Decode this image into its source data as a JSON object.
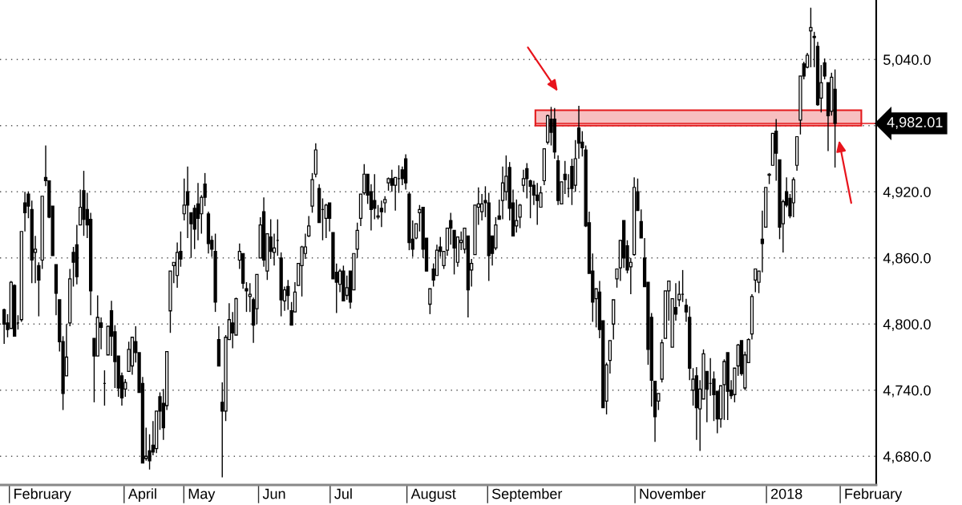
{
  "chart_data": {
    "type": "candlestick",
    "color": "#000000",
    "categories": [
      null,
      null,
      null,
      null,
      null,
      null,
      null,
      null,
      null,
      null,
      null,
      "February",
      null,
      null,
      null,
      null,
      null,
      null,
      null,
      null,
      null,
      null,
      null,
      null,
      null,
      null,
      null,
      null,
      null,
      null,
      null,
      null,
      null,
      null,
      null,
      null,
      null,
      null,
      null,
      null,
      "April",
      null,
      null,
      null,
      null,
      null,
      null,
      null,
      null,
      null,
      null,
      null,
      null,
      null,
      null,
      null,
      null,
      "May",
      null,
      null,
      null,
      null,
      null,
      null,
      null,
      null,
      null,
      null,
      null,
      null,
      null,
      null,
      null,
      null,
      null,
      null,
      null,
      null,
      "Jun",
      null,
      null,
      null,
      null,
      null,
      null,
      null,
      null,
      null,
      null,
      null,
      null,
      null,
      null,
      null,
      null,
      null,
      null,
      null,
      "Jul",
      null,
      null,
      null,
      null,
      null,
      null,
      null,
      null,
      null,
      null,
      null,
      null,
      null,
      null,
      null,
      null,
      null,
      null,
      null,
      null,
      null,
      null,
      null,
      null,
      null,
      "August",
      null,
      null,
      null,
      null,
      null,
      null,
      null,
      null,
      null,
      null,
      null,
      null,
      null,
      null,
      null,
      null,
      null,
      null,
      null,
      null,
      null,
      null,
      null,
      null,
      null,
      null,
      "September",
      null,
      null,
      null,
      null,
      null,
      null,
      null,
      null,
      null,
      null,
      null,
      null,
      null,
      null,
      null,
      null,
      null,
      null,
      null,
      null,
      null,
      null,
      null,
      null,
      null,
      null,
      null,
      null,
      null,
      null,
      null,
      null,
      null,
      null,
      null,
      null,
      null,
      null,
      null,
      null,
      null,
      "November",
      null,
      null,
      null,
      null,
      null,
      null,
      null,
      null,
      null,
      null,
      null,
      null,
      null,
      null,
      null,
      null,
      null,
      null,
      null,
      null,
      null,
      null,
      null,
      null,
      null,
      null,
      null,
      null,
      null,
      null,
      null,
      null,
      "2018",
      null,
      null,
      null,
      null,
      null,
      null,
      null,
      null,
      null,
      null,
      null,
      null,
      null,
      null,
      null,
      null,
      null,
      null,
      null,
      null,
      null,
      null,
      null,
      null,
      "February"
    ],
    "ohlc": [
      [
        4813,
        4814,
        4782,
        4800
      ],
      [
        4801,
        4809,
        4788,
        4795
      ],
      [
        4796,
        4839,
        4796,
        4838
      ],
      [
        4835,
        4836,
        4789,
        4789
      ],
      [
        4801,
        4808,
        4795,
        4801
      ],
      [
        4804,
        4884,
        4802,
        4884
      ],
      [
        4910,
        4920,
        4884,
        4901
      ],
      [
        4918,
        4920,
        4896,
        4907
      ],
      [
        4904,
        4912,
        4837,
        4858
      ],
      [
        4865,
        4880,
        4837,
        4868
      ],
      [
        4853,
        4856,
        4807,
        4840
      ],
      [
        4858,
        4916,
        4850,
        4916
      ],
      [
        4933,
        4962,
        4925,
        4930
      ],
      [
        4930,
        4930,
        4896,
        4897
      ],
      [
        4907,
        4907,
        4862,
        4862
      ],
      [
        4854,
        4854,
        4808,
        4828
      ],
      [
        4822,
        4822,
        4775,
        4784
      ],
      [
        4784,
        4789,
        4722,
        4737
      ],
      [
        4753,
        4800,
        4753,
        4770
      ],
      [
        4801,
        4850,
        4798,
        4841
      ],
      [
        4865,
        4870,
        4834,
        4856
      ],
      [
        4872,
        4890,
        4836,
        4843
      ],
      [
        4890,
        4922,
        4890,
        4906
      ],
      [
        4921,
        4939,
        4880,
        4895
      ],
      [
        4904,
        4919,
        4878,
        4890
      ],
      [
        4895,
        4901,
        4808,
        4830
      ],
      [
        4787,
        4787,
        4729,
        4771
      ],
      [
        4771,
        4826,
        4771,
        4806
      ],
      [
        4801,
        4806,
        4777,
        4797
      ],
      [
        4746,
        4758,
        4726,
        4746
      ],
      [
        4772,
        4798,
        4772,
        4798
      ],
      [
        4812,
        4821,
        4771,
        4789
      ],
      [
        4793,
        4799,
        4742,
        4766
      ],
      [
        4771,
        4771,
        4734,
        4742
      ],
      [
        4753,
        4756,
        4726,
        4733
      ],
      [
        4741,
        4750,
        4734,
        4747
      ],
      [
        4757,
        4784,
        4757,
        4777
      ],
      [
        4762,
        4788,
        4754,
        4788
      ],
      [
        4784,
        4798,
        4765,
        4774
      ],
      [
        4774,
        4774,
        4738,
        4738
      ],
      [
        4746,
        4752,
        4674,
        4674
      ],
      [
        4678,
        4706,
        4676,
        4680
      ],
      [
        4685,
        4700,
        4668,
        4676
      ],
      [
        4690,
        4712,
        4681,
        4684
      ],
      [
        4687,
        4721,
        4683,
        4721
      ],
      [
        4734,
        4738,
        4704,
        4721
      ],
      [
        4728,
        4741,
        4695,
        4706
      ],
      [
        4726,
        4775,
        4722,
        4775
      ],
      [
        4812,
        4848,
        4792,
        4848
      ],
      [
        4853,
        4856,
        4837,
        4856
      ],
      [
        4844,
        4874,
        4833,
        4865
      ],
      [
        4866,
        4884,
        4852,
        4859
      ],
      [
        4900,
        4932,
        4894,
        4908
      ],
      [
        4920,
        4943,
        4878,
        4908
      ],
      [
        4901,
        4901,
        4860,
        4891
      ],
      [
        4905,
        4908,
        4868,
        4886
      ],
      [
        4909,
        4928,
        4876,
        4896
      ],
      [
        4900,
        4917,
        4882,
        4915
      ],
      [
        4927,
        4937,
        4907,
        4915
      ],
      [
        4900,
        4902,
        4864,
        4873
      ],
      [
        4876,
        4880,
        4861,
        4868
      ],
      [
        4866,
        4882,
        4811,
        4820
      ],
      [
        4786,
        4798,
        4762,
        4762
      ],
      [
        4729,
        4747,
        4661,
        4721
      ],
      [
        4721,
        4790,
        4712,
        4788
      ],
      [
        4786,
        4819,
        4786,
        4804
      ],
      [
        4801,
        4811,
        4778,
        4792
      ],
      [
        4790,
        4824,
        4790,
        4823
      ],
      [
        4858,
        4873,
        4850,
        4866
      ],
      [
        4864,
        4864,
        4832,
        4837
      ],
      [
        4832,
        4838,
        4811,
        4830
      ],
      [
        4825,
        4837,
        4811,
        4827
      ],
      [
        4822,
        4824,
        4783,
        4799
      ],
      [
        4814,
        4845,
        4800,
        4845
      ],
      [
        4860,
        4897,
        4860,
        4890
      ],
      [
        4902,
        4915,
        4852,
        4858
      ],
      [
        4848,
        4882,
        4840,
        4882
      ],
      [
        4879,
        4895,
        4859,
        4866
      ],
      [
        4865,
        4882,
        4853,
        4869
      ],
      [
        4876,
        4895,
        4862,
        4876
      ],
      [
        4860,
        4865,
        4807,
        4822
      ],
      [
        4821,
        4834,
        4812,
        4831
      ],
      [
        4834,
        4840,
        4813,
        4826
      ],
      [
        4812,
        4820,
        4799,
        4799
      ],
      [
        4811,
        4838,
        4811,
        4829
      ],
      [
        4835,
        4855,
        4835,
        4855
      ],
      [
        4853,
        4871,
        4825,
        4870
      ],
      [
        4864,
        4882,
        4859,
        4870
      ],
      [
        4880,
        4898,
        4879,
        4889
      ],
      [
        4907,
        4937,
        4901,
        4931
      ],
      [
        4936,
        4964,
        4933,
        4958
      ],
      [
        4923,
        4927,
        4892,
        4892
      ],
      [
        4904,
        4914,
        4876,
        4904
      ],
      [
        4896,
        4909,
        4878,
        4908
      ],
      [
        4910,
        4910,
        4884,
        4896
      ],
      [
        4883,
        4883,
        4841,
        4841
      ],
      [
        4847,
        4855,
        4810,
        4838
      ],
      [
        4836,
        4850,
        4829,
        4848
      ],
      [
        4848,
        4853,
        4821,
        4821
      ],
      [
        4826,
        4844,
        4822,
        4833
      ],
      [
        4848,
        4848,
        4814,
        4820
      ],
      [
        4831,
        4864,
        4831,
        4864
      ],
      [
        4868,
        4892,
        4860,
        4885
      ],
      [
        4896,
        4918,
        4889,
        4918
      ],
      [
        4919,
        4945,
        4917,
        4936
      ],
      [
        4936,
        4936,
        4909,
        4917
      ],
      [
        4920,
        4927,
        4885,
        4904
      ],
      [
        4912,
        4936,
        4895,
        4905
      ],
      [
        4897,
        4908,
        4895,
        4898
      ],
      [
        4905,
        4912,
        4888,
        4902
      ],
      [
        4910,
        4916,
        4901,
        4913
      ],
      [
        4928,
        4933,
        4921,
        4932
      ],
      [
        4932,
        4940,
        4920,
        4926
      ],
      [
        4926,
        4933,
        4903,
        4933
      ],
      [
        4932,
        4944,
        4919,
        4932
      ],
      [
        4940,
        4943,
        4926,
        4932
      ],
      [
        4950,
        4954,
        4922,
        4928
      ],
      [
        4918,
        4920,
        4867,
        4874
      ],
      [
        4877,
        4894,
        4861,
        4868
      ],
      [
        4878,
        4891,
        4877,
        4891
      ],
      [
        4901,
        4908,
        4884,
        4904
      ],
      [
        4906,
        4906,
        4860,
        4868
      ],
      [
        4878,
        4878,
        4848,
        4848
      ],
      [
        4818,
        4832,
        4809,
        4832
      ],
      [
        4850,
        4855,
        4834,
        4840
      ],
      [
        4844,
        4872,
        4844,
        4867
      ],
      [
        4870,
        4879,
        4861,
        4866
      ],
      [
        4853,
        4866,
        4850,
        4866
      ],
      [
        4867,
        4887,
        4862,
        4887
      ],
      [
        4894,
        4901,
        4872,
        4887
      ],
      [
        4885,
        4885,
        4845,
        4869
      ],
      [
        4856,
        4879,
        4852,
        4879
      ],
      [
        4874,
        4884,
        4867,
        4876
      ],
      [
        4868,
        4887,
        4864,
        4887
      ],
      [
        4880,
        4880,
        4806,
        4831
      ],
      [
        4849,
        4859,
        4834,
        4855
      ],
      [
        4863,
        4908,
        4863,
        4908
      ],
      [
        4906,
        4924,
        4890,
        4909
      ],
      [
        4902,
        4918,
        4894,
        4909
      ],
      [
        4912,
        4925,
        4897,
        4910
      ],
      [
        4910,
        4919,
        4839,
        4862
      ],
      [
        4880,
        4880,
        4853,
        4864
      ],
      [
        4869,
        4897,
        4867,
        4890
      ],
      [
        4898,
        4913,
        4895,
        4895
      ],
      [
        4912,
        4943,
        4895,
        4928
      ],
      [
        4920,
        4953,
        4912,
        4934
      ],
      [
        4942,
        4947,
        4894,
        4905
      ],
      [
        4910,
        4922,
        4880,
        4880
      ],
      [
        4889,
        4913,
        4883,
        4894
      ],
      [
        4897,
        4909,
        4887,
        4908
      ],
      [
        4926,
        4940,
        4920,
        4932
      ],
      [
        4941,
        4946,
        4914,
        4932
      ],
      [
        4930,
        4931,
        4896,
        4925
      ],
      [
        4926,
        4930,
        4908,
        4917
      ],
      [
        4917,
        4928,
        4890,
        4912
      ],
      [
        4906,
        4925,
        4906,
        4919
      ],
      [
        4930,
        4959,
        4926,
        4959
      ],
      [
        4965,
        4990,
        4963,
        4989
      ],
      [
        4986,
        4997,
        4962,
        4974
      ],
      [
        4986,
        4996,
        4950,
        4956
      ],
      [
        4948,
        4953,
        4908,
        4912
      ],
      [
        4909,
        4929,
        4909,
        4929
      ],
      [
        4936,
        4948,
        4918,
        4931
      ],
      [
        4923,
        4936,
        4915,
        4923
      ],
      [
        4943,
        4950,
        4908,
        4923
      ],
      [
        4926,
        4967,
        4920,
        4950
      ],
      [
        4978,
        4998,
        4950,
        4964
      ],
      [
        4965,
        4975,
        4952,
        4960
      ],
      [
        4958,
        4962,
        4888,
        4889
      ],
      [
        4892,
        4902,
        4846,
        4846
      ],
      [
        4848,
        4864,
        4802,
        4820
      ],
      [
        4823,
        4832,
        4797,
        4832
      ],
      [
        4829,
        4839,
        4787,
        4795
      ],
      [
        4803,
        4803,
        4724,
        4724
      ],
      [
        4730,
        4765,
        4718,
        4763
      ],
      [
        4767,
        4785,
        4755,
        4785
      ],
      [
        4800,
        4822,
        4786,
        4822
      ],
      [
        4841,
        4850,
        4833,
        4850
      ],
      [
        4851,
        4876,
        4839,
        4876
      ],
      [
        4894,
        4894,
        4851,
        4860
      ],
      [
        4871,
        4876,
        4846,
        4849
      ],
      [
        4852,
        4860,
        4827,
        4856
      ],
      [
        4863,
        4933,
        4862,
        4924
      ],
      [
        4920,
        4932,
        4903,
        4903
      ],
      [
        4893,
        4904,
        4878,
        4878
      ],
      [
        4860,
        4878,
        4834,
        4834
      ],
      [
        4838,
        4838,
        4763,
        4777
      ],
      [
        4806,
        4810,
        4725,
        4749
      ],
      [
        4748,
        4748,
        4693,
        4716
      ],
      [
        4730,
        4737,
        4722,
        4737
      ],
      [
        4750,
        4786,
        4747,
        4783
      ],
      [
        4787,
        4830,
        4787,
        4830
      ],
      [
        4830,
        4839,
        4803,
        4839
      ],
      [
        4779,
        4823,
        4779,
        4823
      ],
      [
        4815,
        4837,
        4803,
        4809
      ],
      [
        4822,
        4839,
        4816,
        4827
      ],
      [
        4827,
        4849,
        4820,
        4827
      ],
      [
        4817,
        4823,
        4802,
        4811
      ],
      [
        4806,
        4816,
        4749,
        4760
      ],
      [
        4740,
        4760,
        4726,
        4750
      ],
      [
        4753,
        4761,
        4695,
        4724
      ],
      [
        4723,
        4749,
        4685,
        4741
      ],
      [
        4732,
        4777,
        4732,
        4773
      ],
      [
        4757,
        4757,
        4711,
        4741
      ],
      [
        4746,
        4769,
        4735,
        4746
      ],
      [
        4750,
        4757,
        4712,
        4736
      ],
      [
        4739,
        4739,
        4701,
        4714
      ],
      [
        4714,
        4744,
        4706,
        4744
      ],
      [
        4745,
        4768,
        4713,
        4766
      ],
      [
        4774,
        4774,
        4713,
        4739
      ],
      [
        4740,
        4749,
        4732,
        4735
      ],
      [
        4736,
        4760,
        4729,
        4760
      ],
      [
        4762,
        4782,
        4753,
        4781
      ],
      [
        4785,
        4785,
        4753,
        4755
      ],
      [
        4742,
        4775,
        4740,
        4772
      ],
      [
        4765,
        4787,
        4765,
        4786
      ],
      [
        4791,
        4827,
        4786,
        4825
      ],
      [
        4840,
        4850,
        4829,
        4850
      ],
      [
        4838,
        4848,
        4828,
        4848
      ],
      [
        4877,
        4903,
        4847,
        4873
      ],
      [
        4888,
        4924,
        4888,
        4924
      ],
      [
        4935,
        4937,
        4927,
        4936
      ],
      [
        4944,
        4973,
        4944,
        4973
      ],
      [
        4975,
        4986,
        4930,
        4955
      ],
      [
        4949,
        4949,
        4877,
        4888
      ],
      [
        4891,
        4913,
        4865,
        4911
      ],
      [
        4920,
        4933,
        4906,
        4908
      ],
      [
        4914,
        4918,
        4896,
        4898
      ],
      [
        4910,
        4933,
        4897,
        4931
      ],
      [
        4944,
        4970,
        4939,
        4970
      ],
      [
        4985,
        5025,
        4972,
        5025
      ],
      [
        5036,
        5038,
        5022,
        5025
      ],
      [
        5033,
        5046,
        5032,
        5044
      ],
      [
        5066,
        5087,
        5033,
        5069
      ],
      [
        5061,
        5065,
        5033,
        5060
      ],
      [
        5052,
        5056,
        4998,
        4999
      ],
      [
        5005,
        5035,
        4992,
        5019
      ],
      [
        5037,
        5041,
        5022,
        5025
      ],
      [
        5019,
        5019,
        4957,
        4989
      ],
      [
        4993,
        5028,
        4989,
        5024
      ],
      [
        5013,
        5031,
        4942,
        4982.01
      ],
      null,
      null,
      null,
      null,
      null,
      null,
      null,
      null,
      null,
      null,
      null
    ],
    "ylim": [
      4654,
      5094
    ],
    "yticks": [
      {
        "value": 4680,
        "label": "4,680.0"
      },
      {
        "value": 4740,
        "label": "4,740.0"
      },
      {
        "value": 4800,
        "label": "4,800.0"
      },
      {
        "value": 4860,
        "label": "4,860.0"
      },
      {
        "value": 4920,
        "label": "4,920.0"
      },
      {
        "value": 4980,
        "label": null
      },
      {
        "value": 5040,
        "label": "5,040.0"
      }
    ],
    "grid": "y",
    "ref_lines": [
      {
        "axis": "y",
        "value": 4982.01,
        "label": "4,982.01",
        "color": "#e31a1c"
      }
    ],
    "bands": [
      {
        "axis": "y",
        "from": 4980,
        "to": 4994,
        "color": "#e31a1c"
      }
    ]
  }
}
